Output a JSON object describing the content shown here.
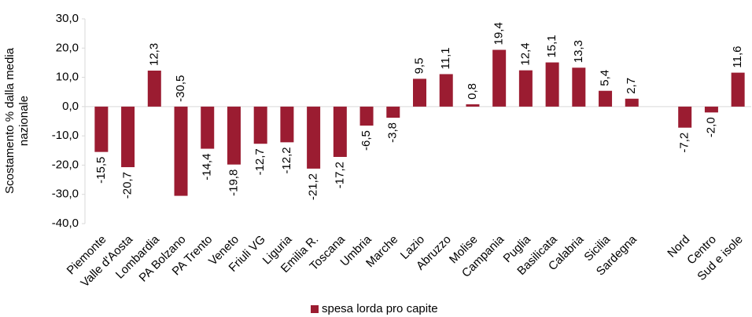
{
  "chart_data": {
    "type": "bar",
    "y_label": "Scostamento % dalla media nazionale",
    "categories": [
      "Piemonte",
      "Valle d'Aosta",
      "Lombardia",
      "PA Bolzano",
      "PA Trento",
      "Veneto",
      "Friuli VG",
      "Liguria",
      "Emilia R.",
      "Toscana",
      "Umbria",
      "Marche",
      "Lazio",
      "Abruzzo",
      "Molise",
      "Campania",
      "Puglia",
      "Basilicata",
      "Calabria",
      "Sicilia",
      "Sardegna",
      null,
      "Nord",
      "Centro",
      "Sud e isole"
    ],
    "series": [
      {
        "name": "spesa lorda pro capite",
        "color": "#9b1c31",
        "values": [
          -15.5,
          -20.7,
          12.3,
          -30.5,
          -14.4,
          -19.8,
          -12.7,
          -12.2,
          -21.2,
          -17.2,
          -6.5,
          -3.8,
          9.5,
          11.1,
          0.8,
          19.4,
          12.4,
          15.1,
          13.3,
          5.4,
          2.7,
          null,
          -7.2,
          -2.0,
          11.6
        ],
        "value_labels": [
          "-15,5",
          "-20,7",
          "12,3",
          "-30,5",
          "-14,4",
          "-19,8",
          "-12,7",
          "-12,2",
          "-21,2",
          "-17,2",
          "-6,5",
          "-3,8",
          "9,5",
          "11,1",
          "0,8",
          "19,4",
          "12,4",
          "15,1",
          "13,3",
          "5,4",
          "2,7",
          null,
          "-7,2",
          "-2,0",
          "11,6"
        ]
      }
    ],
    "ylim": [
      -40,
      30
    ],
    "yticks": [
      {
        "value": -40,
        "label": "-40,0"
      },
      {
        "value": -30,
        "label": "-30,0"
      },
      {
        "value": -20,
        "label": "-20,0"
      },
      {
        "value": -10,
        "label": "-10,0"
      },
      {
        "value": 0,
        "label": "0,0"
      },
      {
        "value": 10,
        "label": "10,0"
      },
      {
        "value": 20,
        "label": "20,0"
      },
      {
        "value": 30,
        "label": "30,0"
      }
    ],
    "legend": "bottom"
  }
}
